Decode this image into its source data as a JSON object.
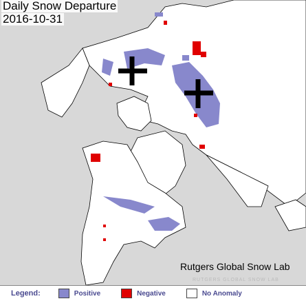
{
  "title": "Daily Snow Departure",
  "date": "2016-10-31",
  "credit": "Rutgers Global Snow Lab",
  "watermark": "RUTGERS GLOBAL SNOW LAB",
  "legend": {
    "label": "Legend:",
    "items": [
      {
        "label": "Positive",
        "color": "#8888cc"
      },
      {
        "label": "Negative",
        "color": "#e00000"
      },
      {
        "label": "No Anomaly",
        "color": "#ffffff"
      }
    ]
  }
}
